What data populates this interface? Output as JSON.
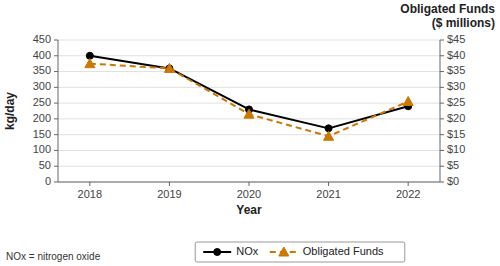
{
  "chart_data": {
    "type": "line",
    "x": [
      2018,
      2019,
      2020,
      2021,
      2022
    ],
    "xlim": [
      2017.6,
      2022.4
    ],
    "xticks": [
      2018,
      2019,
      2020,
      2021,
      2022
    ],
    "x_label": "Year",
    "y_label": "kg/day",
    "y2_label": [
      "Obligated Funds",
      "($ millions)"
    ],
    "ylim": [
      0,
      450
    ],
    "yticks": [
      0,
      50,
      100,
      150,
      200,
      250,
      300,
      350,
      400,
      450
    ],
    "y2lim": [
      0,
      45
    ],
    "y2ticks": [
      {
        "value": 0,
        "label": "$0"
      },
      {
        "value": 5,
        "label": "$5"
      },
      {
        "value": 10,
        "label": "$10"
      },
      {
        "value": 15,
        "label": "$15"
      },
      {
        "value": 20,
        "label": "$20"
      },
      {
        "value": 25,
        "label": "$25"
      },
      {
        "value": 30,
        "label": "$30"
      },
      {
        "value": 35,
        "label": "$35"
      },
      {
        "value": 40,
        "label": "$40"
      },
      {
        "value": 45,
        "label": "$45"
      }
    ],
    "series": [
      {
        "name": "NOx",
        "color": "#000000",
        "values": [
          400,
          360,
          230,
          170,
          240
        ],
        "marker": "circle",
        "line_style": "solid"
      },
      {
        "name": "Obligated Funds",
        "color": "#CC7700",
        "values": [
          37.5,
          36.0,
          21.5,
          14.5,
          25.5
        ],
        "axis": "y2",
        "marker": "triangle",
        "line_style": "dashed"
      }
    ],
    "annotations": [
      "NOx = nitrogen oxide"
    ],
    "grid": true,
    "legend": "bottom"
  }
}
